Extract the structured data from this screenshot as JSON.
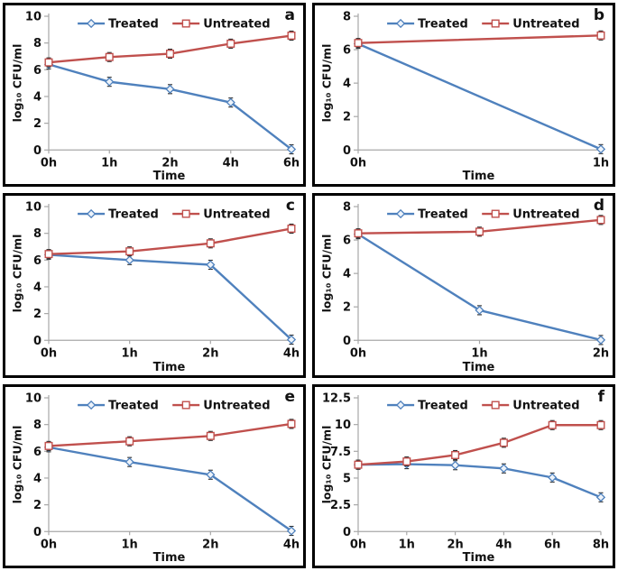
{
  "figure": {
    "background": "#ffffff",
    "panel_border_color": "#000000",
    "text_color": "#111111",
    "axis_color": "#a8a8a8",
    "error_bar_color": "#2b2b2b"
  },
  "colors": {
    "treated": "#4F81BD",
    "untreated": "#C0504D"
  },
  "chart_data": [
    {
      "type": "line",
      "panel_label": "a",
      "title": "",
      "xlabel": "Time",
      "ylabel": "log₁₀ CFU/ml",
      "categories": [
        "0h",
        "1h",
        "2h",
        "4h",
        "6h"
      ],
      "ylim": [
        0,
        10
      ],
      "yticks": [
        0,
        2,
        4,
        6,
        8,
        10
      ],
      "grid": false,
      "legend_position": "top-center",
      "error_bars": true,
      "series": [
        {
          "name": "Treated",
          "color": "#4F81BD",
          "marker": "diamond",
          "values": [
            6.4,
            5.1,
            4.55,
            3.55,
            0.05
          ]
        },
        {
          "name": "Untreated",
          "color": "#C0504D",
          "marker": "square",
          "values": [
            6.55,
            6.95,
            7.2,
            7.95,
            8.55
          ]
        }
      ]
    },
    {
      "type": "line",
      "panel_label": "b",
      "title": "",
      "xlabel": "Time",
      "ylabel": "log₁₀ CFU/ml",
      "categories": [
        "0h",
        "1h"
      ],
      "ylim": [
        0,
        8
      ],
      "yticks": [
        0,
        2,
        4,
        6,
        8
      ],
      "grid": false,
      "legend_position": "top-center",
      "error_bars": true,
      "series": [
        {
          "name": "Treated",
          "color": "#4F81BD",
          "marker": "diamond",
          "values": [
            6.35,
            0.05
          ]
        },
        {
          "name": "Untreated",
          "color": "#C0504D",
          "marker": "square",
          "values": [
            6.4,
            6.85
          ]
        }
      ]
    },
    {
      "type": "line",
      "panel_label": "c",
      "title": "",
      "xlabel": "Time",
      "ylabel": "log₁₀ CFU/ml",
      "categories": [
        "0h",
        "1h",
        "2h",
        "4h"
      ],
      "ylim": [
        0,
        10
      ],
      "yticks": [
        0,
        2,
        4,
        6,
        8,
        10
      ],
      "grid": false,
      "legend_position": "top-center",
      "error_bars": true,
      "series": [
        {
          "name": "Treated",
          "color": "#4F81BD",
          "marker": "diamond",
          "values": [
            6.4,
            6.0,
            5.65,
            0.05
          ]
        },
        {
          "name": "Untreated",
          "color": "#C0504D",
          "marker": "square",
          "values": [
            6.45,
            6.65,
            7.25,
            8.35
          ]
        }
      ]
    },
    {
      "type": "line",
      "panel_label": "d",
      "title": "",
      "xlabel": "Time",
      "ylabel": "log₁₀ CFU/ml",
      "categories": [
        "0h",
        "1h",
        "2h"
      ],
      "ylim": [
        0,
        8
      ],
      "yticks": [
        0,
        2,
        4,
        6,
        8
      ],
      "grid": false,
      "legend_position": "top-center",
      "error_bars": true,
      "series": [
        {
          "name": "Treated",
          "color": "#4F81BD",
          "marker": "diamond",
          "values": [
            6.35,
            1.8,
            0.02
          ]
        },
        {
          "name": "Untreated",
          "color": "#C0504D",
          "marker": "square",
          "values": [
            6.4,
            6.5,
            7.2
          ]
        }
      ]
    },
    {
      "type": "line",
      "panel_label": "e",
      "title": "",
      "xlabel": "Time",
      "ylabel": "log₁₀ CFU/ml",
      "categories": [
        "0h",
        "1h",
        "2h",
        "4h"
      ],
      "ylim": [
        0,
        10
      ],
      "yticks": [
        0,
        2,
        4,
        6,
        8,
        10
      ],
      "grid": false,
      "legend_position": "top-center",
      "error_bars": true,
      "series": [
        {
          "name": "Treated",
          "color": "#4F81BD",
          "marker": "diamond",
          "values": [
            6.3,
            5.2,
            4.25,
            0.05
          ]
        },
        {
          "name": "Untreated",
          "color": "#C0504D",
          "marker": "square",
          "values": [
            6.4,
            6.75,
            7.15,
            8.05
          ]
        }
      ]
    },
    {
      "type": "line",
      "panel_label": "f",
      "title": "",
      "xlabel": "Time",
      "ylabel": "log₁₀ CFU/ml",
      "categories": [
        "0h",
        "1h",
        "2h",
        "4h",
        "6h",
        "8h"
      ],
      "ylim": [
        0,
        12.5
      ],
      "yticks": [
        0,
        2.5,
        5,
        7.5,
        10,
        12.5
      ],
      "grid": false,
      "legend_position": "top-center",
      "error_bars": true,
      "series": [
        {
          "name": "Treated",
          "color": "#4F81BD",
          "marker": "diamond",
          "values": [
            6.25,
            6.3,
            6.2,
            5.9,
            5.05,
            3.2
          ]
        },
        {
          "name": "Untreated",
          "color": "#C0504D",
          "marker": "square",
          "values": [
            6.25,
            6.55,
            7.15,
            8.3,
            9.95,
            9.95
          ]
        }
      ]
    }
  ]
}
